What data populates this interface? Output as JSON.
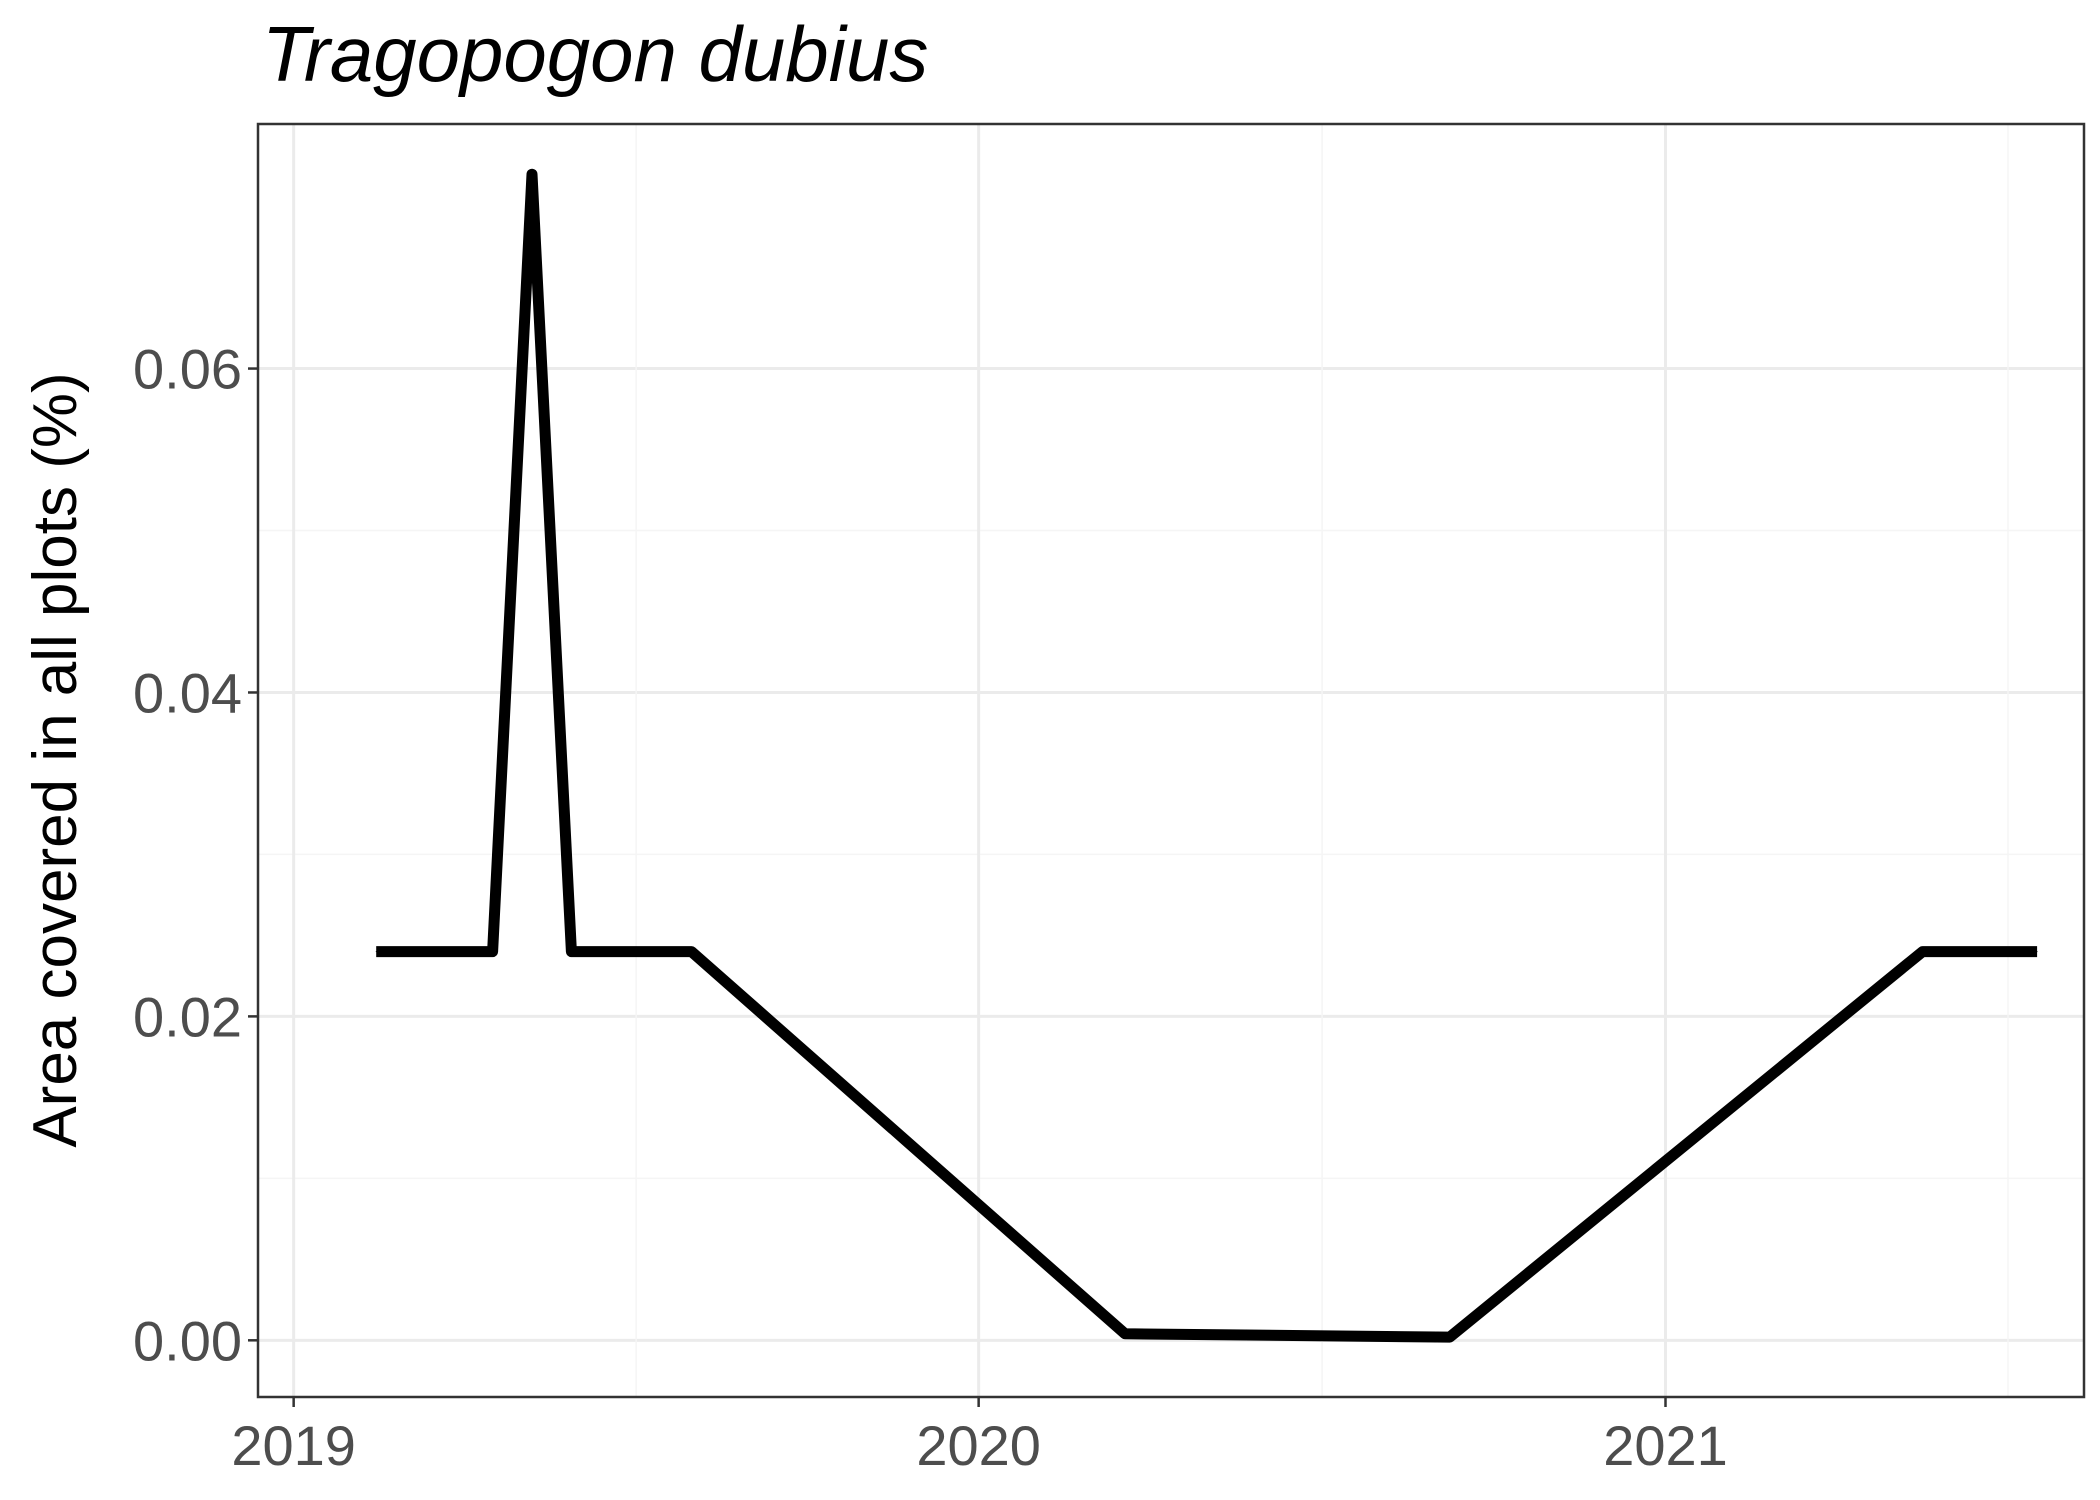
{
  "chart_data": {
    "type": "line",
    "title": "Tragopogon dubius",
    "xlabel": "",
    "ylabel": "Area covered in all plots (%)",
    "x_ticks": [
      "2019",
      "2020",
      "2021"
    ],
    "y_ticks": [
      "0.00",
      "0.02",
      "0.04",
      "0.06"
    ],
    "xlim": [
      "2018-12-13",
      "2021-08-12"
    ],
    "ylim": [
      -0.0035,
      0.0751
    ],
    "grid": true,
    "legend": "none",
    "series": [
      {
        "color": "#000000",
        "x": [
          "2019-02-14",
          "2019-04-17",
          "2019-05-08",
          "2019-05-29",
          "2019-08-01",
          "2020-03-19",
          "2020-09-08",
          "2021-05-18",
          "2021-07-18"
        ],
        "y": [
          0.024,
          0.024,
          0.072,
          0.024,
          0.024,
          0.0004,
          0.0002,
          0.024,
          0.024
        ]
      }
    ]
  }
}
